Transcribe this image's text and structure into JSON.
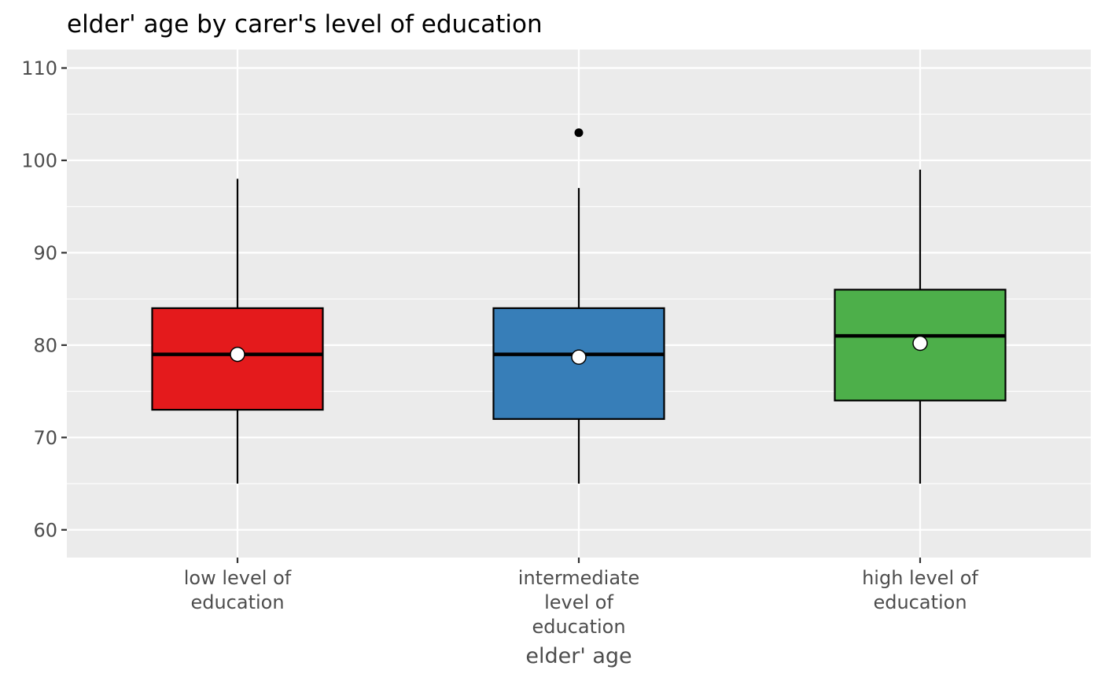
{
  "chart_data": {
    "type": "box",
    "title": "elder' age by carer's level of education",
    "xlabel": "elder' age",
    "ylabel": "",
    "ylim": [
      57,
      112
    ],
    "y_ticks": [
      60,
      70,
      80,
      90,
      100,
      110
    ],
    "grid": true,
    "legend": "none",
    "panel_color": "#ebebeb",
    "categories": [
      [
        "low level of",
        "education"
      ],
      [
        "intermediate",
        "level of",
        "education"
      ],
      [
        "high level of",
        "education"
      ]
    ],
    "series": [
      {
        "category": "low level of education",
        "fill": "#e41a1c",
        "min": 65,
        "q1": 73,
        "median": 79,
        "q3": 84,
        "max": 98,
        "mean": 79.0,
        "outliers": []
      },
      {
        "category": "intermediate level of education",
        "fill": "#377eb8",
        "min": 65,
        "q1": 72,
        "median": 79,
        "q3": 84,
        "max": 97,
        "mean": 78.7,
        "outliers": [
          103
        ]
      },
      {
        "category": "high level of education",
        "fill": "#4daf4a",
        "min": 65,
        "q1": 74,
        "median": 81,
        "q3": 86,
        "max": 99,
        "mean": 80.2,
        "outliers": []
      }
    ]
  }
}
